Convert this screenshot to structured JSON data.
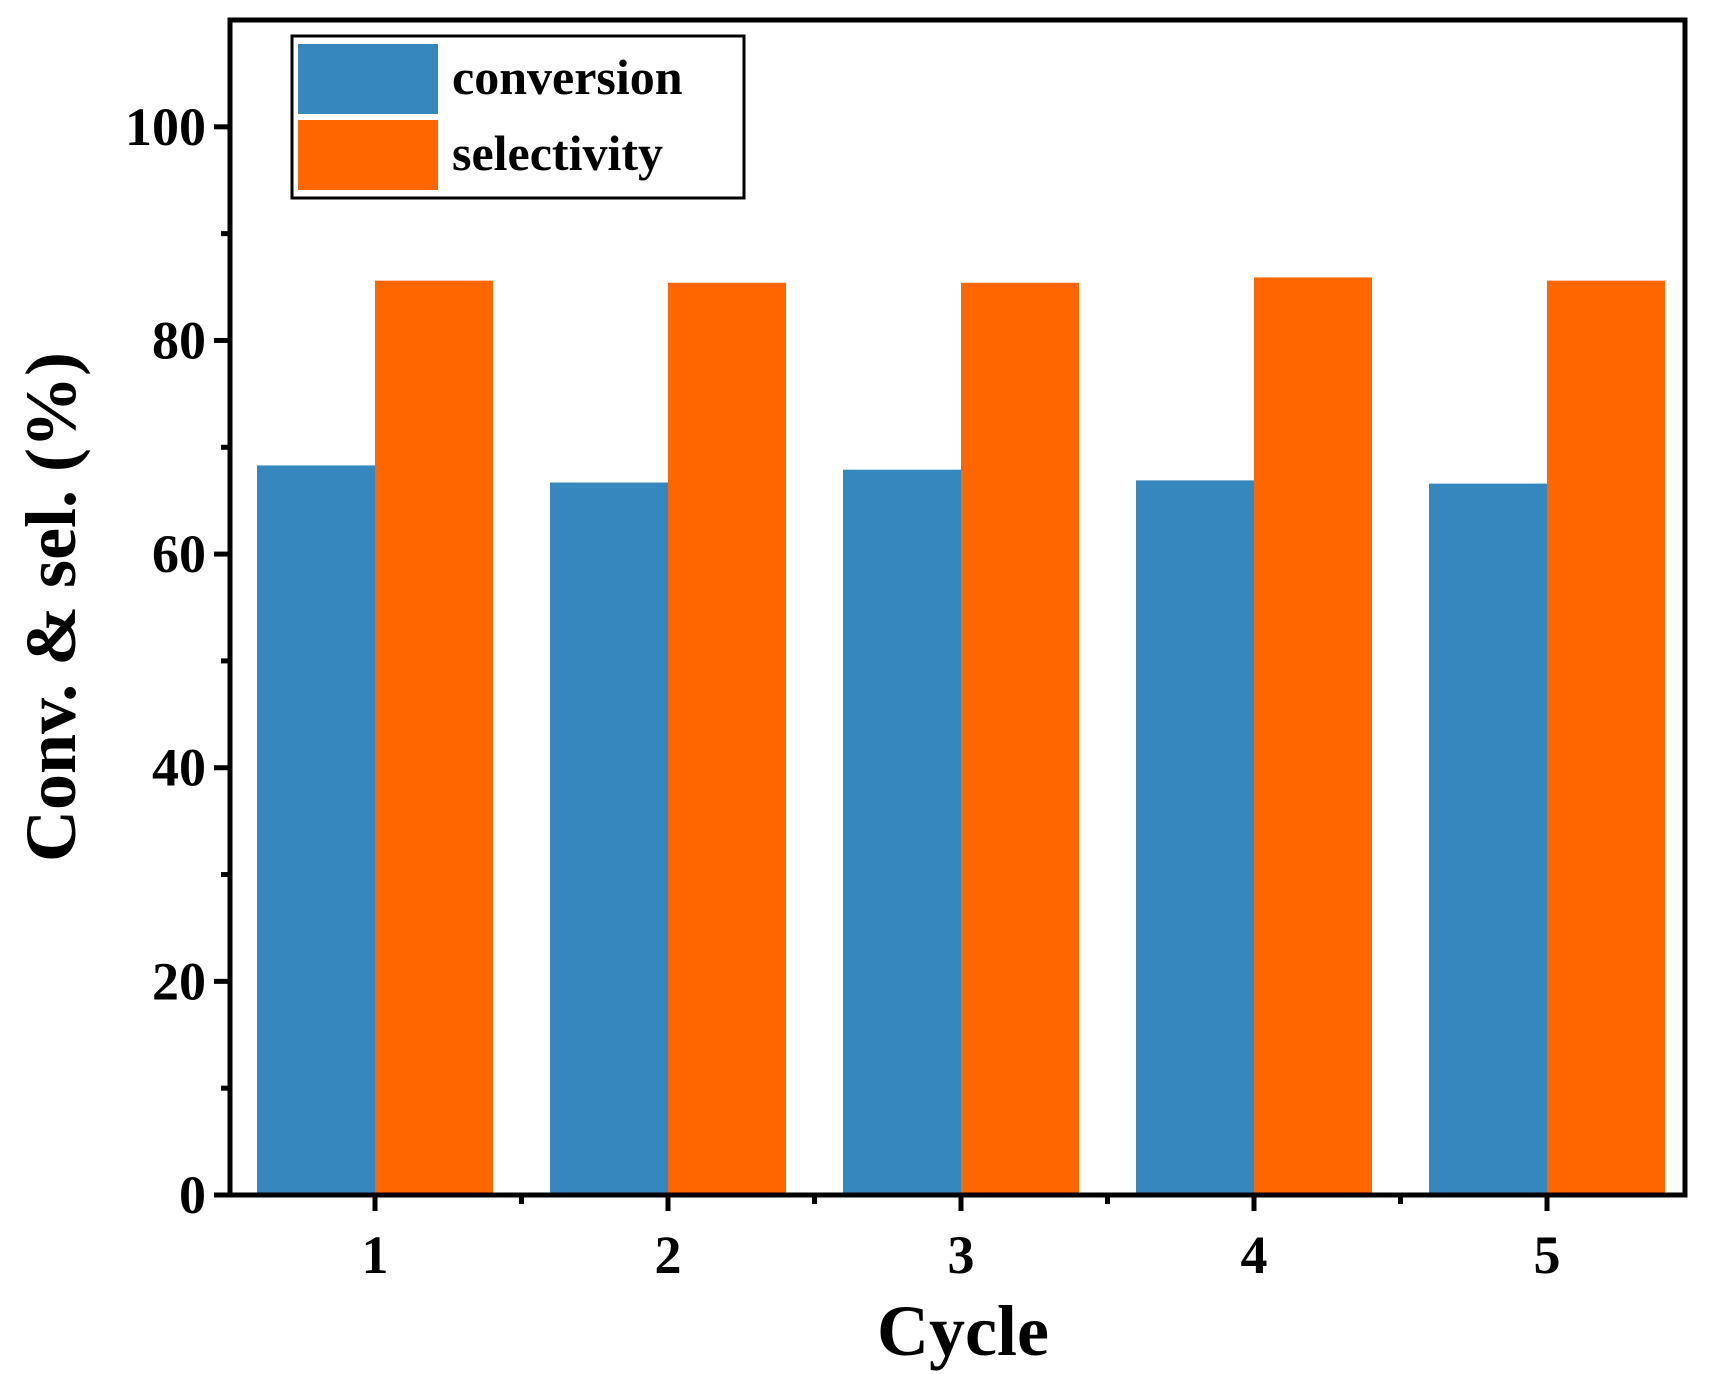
{
  "chart_data": {
    "type": "bar",
    "title": "",
    "xlabel": "Cycle",
    "ylabel": "Conv. & sel. (%)",
    "categories": [
      "1",
      "2",
      "3",
      "4",
      "5"
    ],
    "series": [
      {
        "name": "conversion",
        "color": "#3587bd",
        "values": [
          68.3,
          66.7,
          67.9,
          66.9,
          66.6
        ]
      },
      {
        "name": "selectivity",
        "color": "#ff6600",
        "values": [
          85.6,
          85.4,
          85.4,
          85.9,
          85.6
        ]
      }
    ],
    "ylim": [
      0,
      110
    ],
    "yticks": [
      0,
      20,
      40,
      60,
      80,
      100
    ],
    "yticks_minor": [
      10,
      30,
      50,
      70,
      90
    ],
    "grid": false,
    "legend_position": "top-left"
  }
}
